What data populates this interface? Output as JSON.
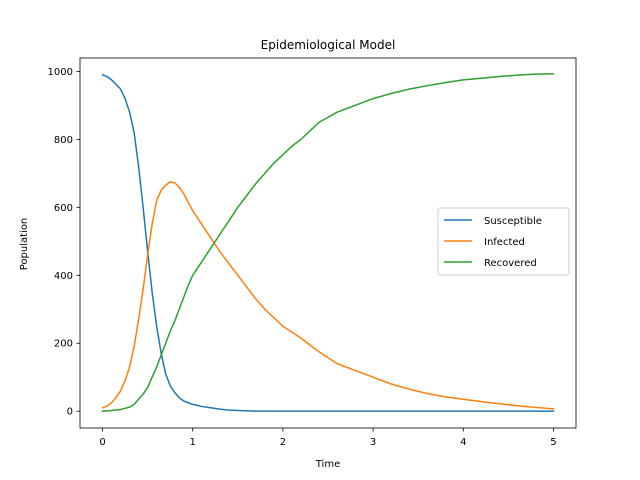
{
  "chart_data": {
    "type": "line",
    "title": "Epidemiological Model",
    "xlabel": "Time",
    "ylabel": "Population",
    "xlim": [
      -0.25,
      5.25
    ],
    "ylim": [
      -49.5,
      1039.5
    ],
    "xticks": [
      0,
      1,
      2,
      3,
      4,
      5
    ],
    "yticks": [
      0,
      200,
      400,
      600,
      800,
      1000
    ],
    "grid": false,
    "legend": {
      "placement": "center-right"
    },
    "series": [
      {
        "name": "Susceptible",
        "color": "#1f77b4",
        "x": [
          0,
          0.05,
          0.1,
          0.15,
          0.2,
          0.25,
          0.3,
          0.35,
          0.4,
          0.45,
          0.5,
          0.55,
          0.6,
          0.65,
          0.7,
          0.75,
          0.8,
          0.85,
          0.9,
          0.95,
          1.0,
          1.1,
          1.2,
          1.3,
          1.4,
          1.5,
          1.6,
          1.7,
          1.8,
          2.0,
          2.5,
          3.0,
          3.5,
          4.0,
          4.5,
          5.0
        ],
        "y": [
          990,
          985,
          975,
          962,
          948,
          920,
          880,
          820,
          720,
          600,
          470,
          350,
          250,
          170,
          110,
          75,
          55,
          40,
          30,
          25,
          20,
          14,
          10,
          6,
          3,
          2,
          1,
          0,
          0,
          0,
          0,
          0,
          0,
          0,
          0,
          0
        ]
      },
      {
        "name": "Infected",
        "color": "#ff7f0e",
        "x": [
          0,
          0.05,
          0.1,
          0.15,
          0.2,
          0.25,
          0.3,
          0.35,
          0.4,
          0.45,
          0.5,
          0.55,
          0.6,
          0.65,
          0.7,
          0.75,
          0.8,
          0.85,
          0.9,
          0.95,
          1.0,
          1.1,
          1.2,
          1.3,
          1.4,
          1.5,
          1.6,
          1.7,
          1.8,
          1.9,
          2.0,
          2.2,
          2.4,
          2.6,
          2.8,
          3.0,
          3.2,
          3.4,
          3.6,
          3.8,
          4.0,
          4.2,
          4.4,
          4.6,
          4.8,
          5.0
        ],
        "y": [
          10,
          15,
          25,
          40,
          60,
          90,
          130,
          190,
          270,
          360,
          460,
          550,
          620,
          650,
          665,
          675,
          672,
          660,
          640,
          615,
          590,
          550,
          510,
          470,
          435,
          400,
          365,
          330,
          300,
          275,
          250,
          215,
          175,
          140,
          120,
          100,
          80,
          65,
          52,
          42,
          35,
          28,
          22,
          16,
          11,
          7
        ]
      },
      {
        "name": "Recovered",
        "color": "#2ca02c",
        "x": [
          0,
          0.1,
          0.2,
          0.3,
          0.35,
          0.4,
          0.45,
          0.5,
          0.55,
          0.6,
          0.65,
          0.7,
          0.75,
          0.8,
          0.85,
          0.9,
          0.95,
          1.0,
          1.1,
          1.2,
          1.3,
          1.4,
          1.5,
          1.6,
          1.7,
          1.8,
          1.9,
          2.0,
          2.1,
          2.2,
          2.3,
          2.4,
          2.6,
          2.8,
          3.0,
          3.2,
          3.4,
          3.6,
          3.8,
          4.0,
          4.2,
          4.4,
          4.6,
          4.8,
          5.0
        ],
        "y": [
          0,
          2,
          5,
          12,
          20,
          35,
          50,
          70,
          100,
          130,
          165,
          200,
          235,
          265,
          300,
          335,
          370,
          400,
          440,
          480,
          520,
          560,
          600,
          635,
          670,
          700,
          730,
          755,
          780,
          800,
          825,
          850,
          880,
          900,
          920,
          935,
          948,
          958,
          967,
          975,
          980,
          985,
          989,
          992,
          993
        ]
      }
    ]
  }
}
